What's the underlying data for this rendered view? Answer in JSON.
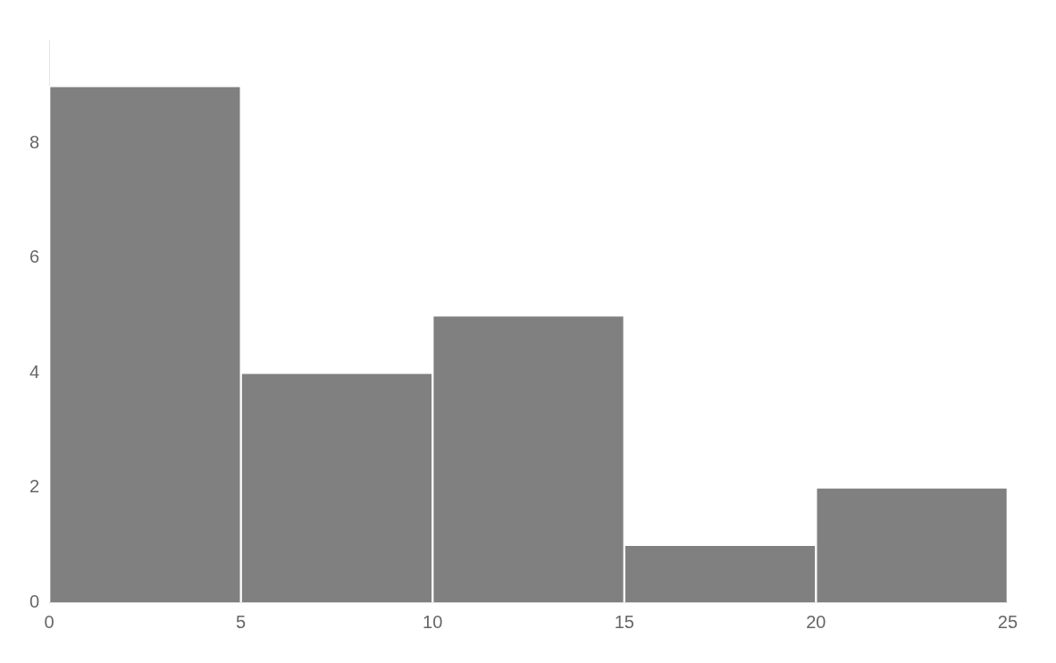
{
  "chart_data": {
    "type": "histogram",
    "bins": [
      0,
      5,
      10,
      15,
      20,
      25
    ],
    "values": [
      9,
      4,
      5,
      1,
      2
    ],
    "color": "#808080",
    "xlim": [
      0,
      25
    ],
    "ylim": [
      0,
      9.8
    ],
    "xticks": [
      0,
      5,
      10,
      15,
      20,
      25
    ],
    "yticks": [
      0,
      2,
      4,
      6,
      8
    ],
    "grid": false
  }
}
